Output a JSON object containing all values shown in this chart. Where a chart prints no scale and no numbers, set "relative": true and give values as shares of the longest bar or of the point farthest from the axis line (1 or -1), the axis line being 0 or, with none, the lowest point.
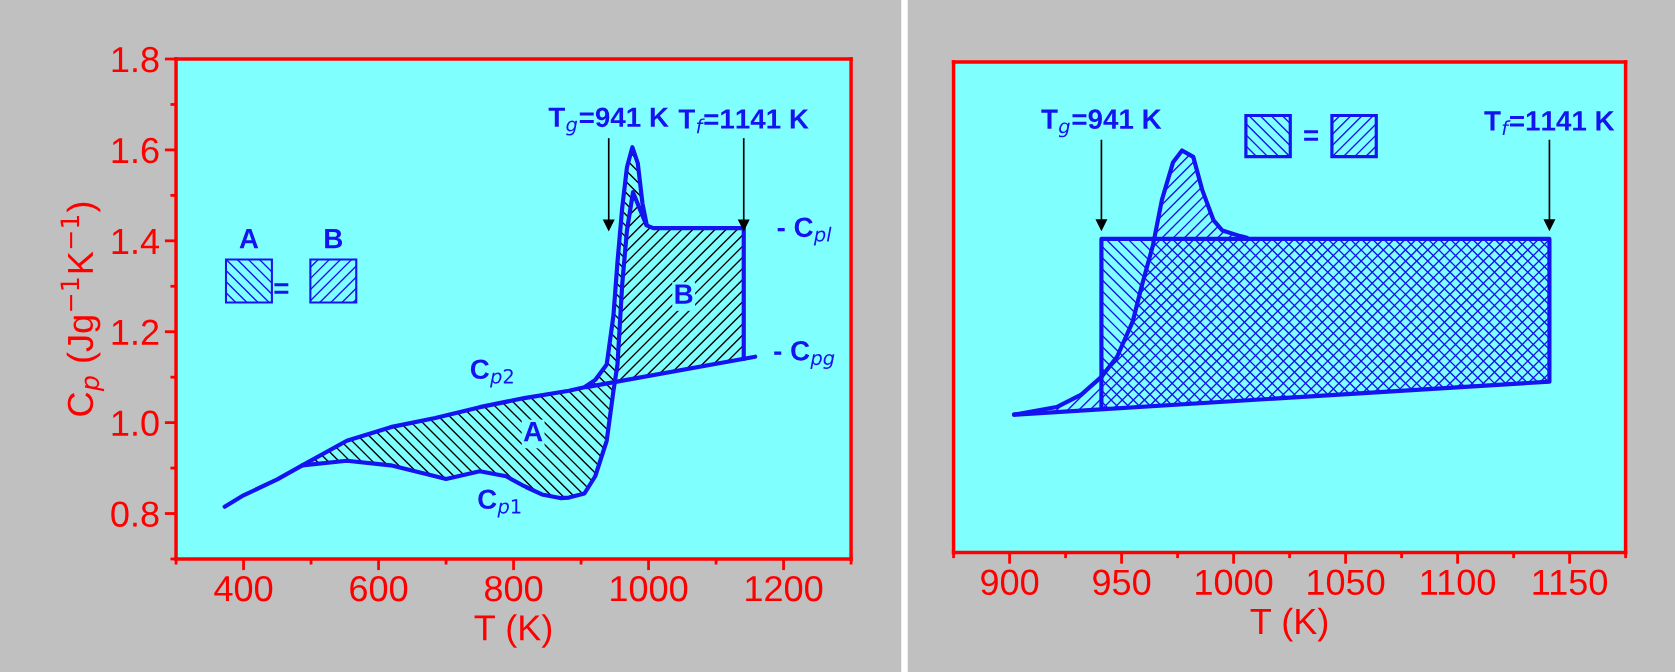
{
  "chart_data": [
    {
      "type": "line",
      "xlabel": "T (K)",
      "ylabel": "C$_{p}$ (Jg$^{−1}$K$^{−1}$)",
      "xlim": [
        300,
        1300
      ],
      "xticks": [
        {
          "value": 300,
          "label": null
        },
        400,
        {
          "value": 500,
          "label": null
        },
        600,
        {
          "value": 700,
          "label": null
        },
        800,
        {
          "value": 900,
          "label": null
        },
        1000,
        {
          "value": 1100,
          "label": null
        },
        1200,
        {
          "value": 1300,
          "label": null
        }
      ],
      "ylim": [
        0.7,
        1.8
      ],
      "yticks": [
        {
          "value": 0.7,
          "label": null
        },
        0.8,
        {
          "value": 0.9,
          "label": null
        },
        {
          "value": 1.0,
          "label": "1.0"
        },
        {
          "value": 1.1,
          "label": null
        },
        1.2,
        {
          "value": 1.3,
          "label": null
        },
        1.4,
        {
          "value": 1.5,
          "label": null
        },
        1.6,
        {
          "value": 1.7,
          "label": null
        },
        1.8
      ],
      "series": [
        {
          "color": "#1414f0",
          "x": [
            372,
            400,
            450,
            487,
            553,
            618,
            684,
            700,
            750,
            789,
            816,
            842,
            869,
            882,
            905,
            921,
            938,
            948,
            954,
            961,
            968,
            977,
            987,
            997,
            1007,
            1141,
            1141
          ],
          "values": [
            0.815,
            0.84,
            0.875,
            0.906,
            0.916,
            0.906,
            0.882,
            0.876,
            0.893,
            0.882,
            0.86,
            0.842,
            0.834,
            0.835,
            0.844,
            0.882,
            0.96,
            1.07,
            1.128,
            1.305,
            1.423,
            1.507,
            1.47,
            1.434,
            1.428,
            1.428,
            1.14
          ]
        },
        {
          "color": "#1414f0",
          "x": [
            487,
            553,
            618,
            684,
            750,
            816,
            882,
            905,
            921,
            938,
            948,
            954,
            961,
            968,
            976,
            984,
            991,
            997
          ],
          "values": [
            0.906,
            0.96,
            0.99,
            1.01,
            1.034,
            1.054,
            1.07,
            1.078,
            1.094,
            1.128,
            1.236,
            1.354,
            1.473,
            1.562,
            1.606,
            1.571,
            1.482,
            1.437
          ]
        },
        {
          "color": "#1414f0",
          "x": [
            908,
            1158
          ],
          "values": [
            1.078,
            1.145
          ]
        }
      ],
      "ref_lines": [
        {
          "axis": "x",
          "value": 941,
          "label": "T$_{g}$=941 K",
          "color": "#000000"
        },
        {
          "axis": "x",
          "value": 1141,
          "label": "T$_{f}$=1141 K",
          "color": "#000000"
        }
      ],
      "annotations": [
        "A",
        "B",
        "=",
        "A",
        "B",
        "C$_{p2}$",
        "C$_{p1}$",
        "- C$_{pl}$",
        "- C$_{pg}$"
      ]
    },
    {
      "type": "line",
      "xlabel": "T (K)",
      "relative": true,
      "tick_labels": "x",
      "xlim": [
        875,
        1175
      ],
      "xticks": [
        {
          "value": 875,
          "label": null
        },
        900,
        {
          "value": 925,
          "label": null
        },
        950,
        {
          "value": 975,
          "label": null
        },
        1000,
        {
          "value": 1025,
          "label": null
        },
        1050,
        {
          "value": 1075,
          "label": null
        },
        1100,
        {
          "value": 1125,
          "label": null
        },
        1150,
        {
          "value": 1175,
          "label": null
        }
      ],
      "series": [
        {
          "color": "#1414f0",
          "x": [
            902,
            921,
            932,
            941,
            948,
            955,
            959,
            964,
            968,
            973,
            977,
            982,
            986,
            991,
            995,
            1003,
            1006
          ],
          "values": [
            0.343,
            0.362,
            0.393,
            0.437,
            0.487,
            0.575,
            0.663,
            0.764,
            0.877,
            0.971,
            1,
            0.984,
            0.902,
            0.827,
            0.801,
            0.787,
            0.783
          ]
        },
        {
          "color": "#1414f0",
          "x": [
            941,
            941,
            1141,
            1141,
            902
          ],
          "values": [
            0.356,
            0.78,
            0.78,
            0.425,
            0.343
          ]
        }
      ],
      "ref_lines": [
        {
          "axis": "x",
          "value": 941,
          "label": "T$_{g}$=941 K",
          "color": "#000000"
        },
        {
          "axis": "x",
          "value": 1141,
          "label": "T$_{f}$=1141 K",
          "color": "#000000"
        }
      ],
      "annotations": [
        "="
      ]
    }
  ]
}
